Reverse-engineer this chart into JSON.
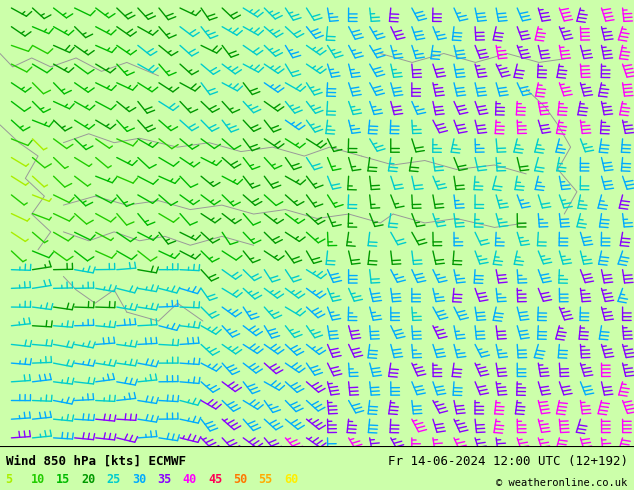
{
  "title_left": "Wind 850 hPa [kts] ECMWF",
  "title_right": "Fr 14-06-2024 12:00 UTC (12+192)",
  "copyright": "© weatheronline.co.uk",
  "legend_values": [
    5,
    10,
    15,
    20,
    25,
    30,
    35,
    40,
    45,
    50,
    55,
    60
  ],
  "legend_colors": [
    "#aaee00",
    "#22cc00",
    "#00bb00",
    "#009900",
    "#00cccc",
    "#00aaff",
    "#8800ff",
    "#ff00ff",
    "#ff0055",
    "#ff7700",
    "#ffaa00",
    "#ffee00"
  ],
  "background_color": "#ccffaa",
  "map_background": "#ccffaa",
  "bottom_bar_color": "#ffffff",
  "title_fontsize": 9,
  "legend_fontsize": 8,
  "figsize": [
    6.34,
    4.9
  ],
  "dpi": 100,
  "seed": 12345,
  "nx": 30,
  "ny": 24
}
